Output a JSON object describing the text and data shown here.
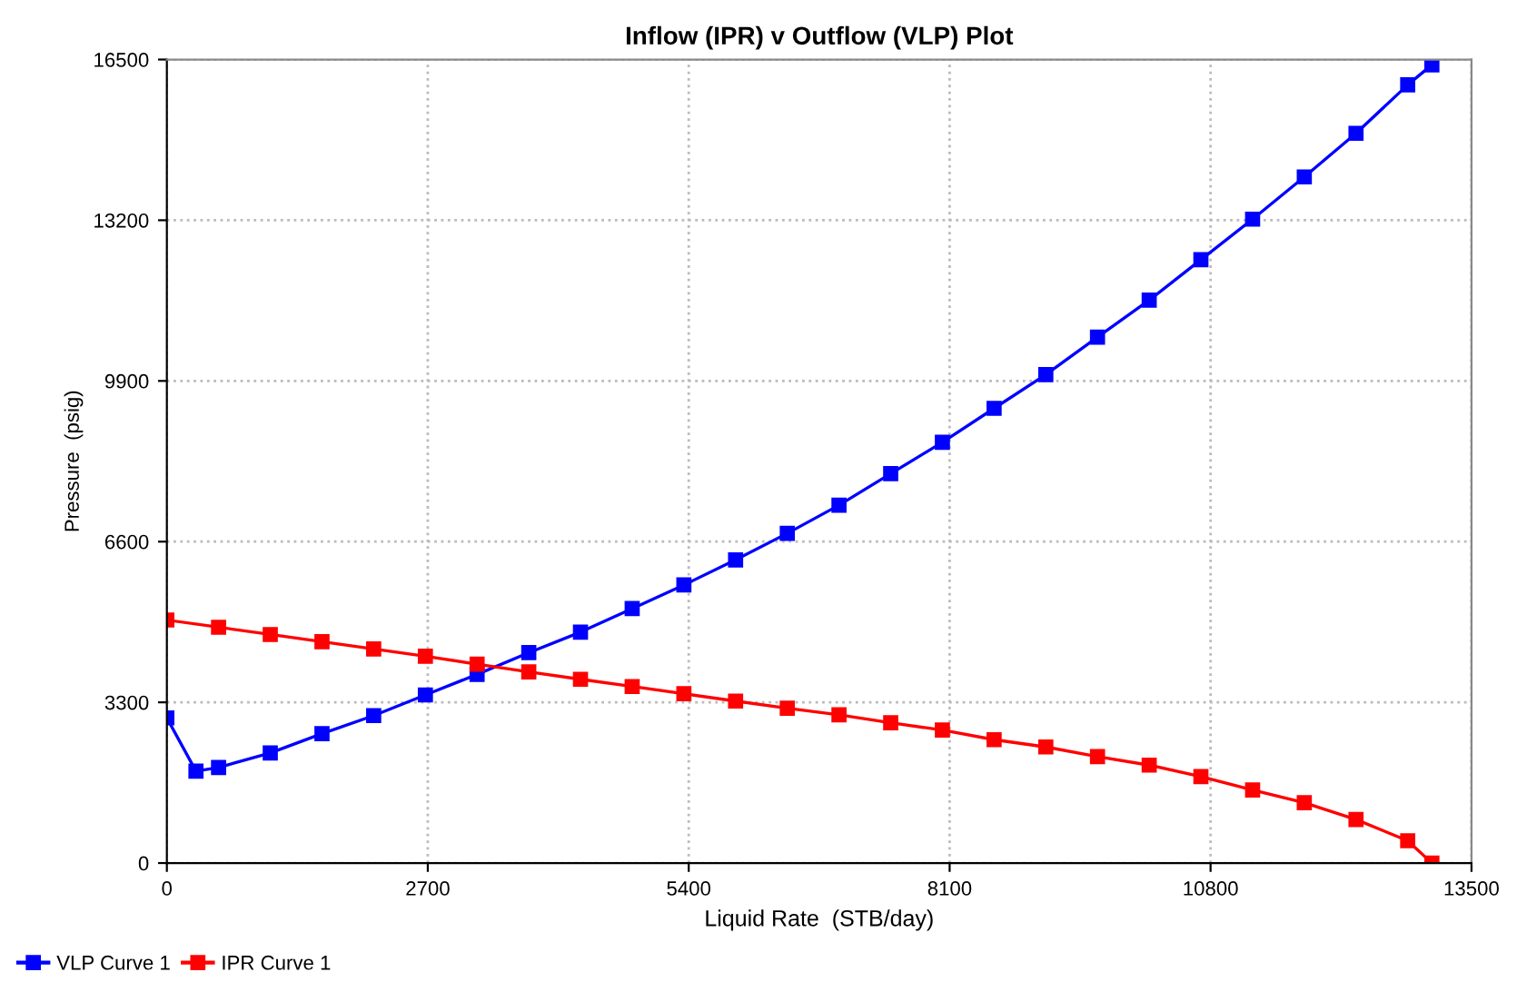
{
  "chart_data": {
    "type": "line",
    "title": "Inflow (IPR) v Outflow (VLP) Plot",
    "xlabel": "Liquid Rate  (STB/day)",
    "ylabel": "Pressure  (psig)",
    "xlim": [
      0,
      13500
    ],
    "xticks": [
      0,
      2700,
      5400,
      8100,
      10800,
      13500
    ],
    "ylim": [
      0,
      16500
    ],
    "yticks": [
      0,
      3300,
      6600,
      9900,
      13200,
      16500
    ],
    "grid": true,
    "legend": "bottom left",
    "marker": "square",
    "line_style": "solid",
    "series": [
      {
        "name": "VLP Curve 1",
        "color": "#0000ff",
        "x": [
          0,
          301,
          535,
          1070,
          1605,
          2140,
          2675,
          3210,
          3745,
          4280,
          4815,
          5350,
          5885,
          6420,
          6955,
          7490,
          8025,
          8560,
          9095,
          9630,
          10165,
          10700,
          11235,
          11770,
          12305,
          12840,
          13090
        ],
        "values": [
          2980,
          1888,
          1963,
          2261,
          2656,
          3028,
          3452,
          3874,
          4320,
          4742,
          5225,
          5710,
          6225,
          6770,
          7348,
          7996,
          8640,
          9337,
          10030,
          10800,
          11560,
          12390,
          13222,
          14090,
          14985,
          15980,
          16390
        ]
      },
      {
        "name": "IPR Curve 1",
        "color": "#ff0000",
        "x": [
          0,
          535,
          1070,
          1605,
          2140,
          2675,
          3210,
          3745,
          4280,
          4815,
          5350,
          5885,
          6420,
          6955,
          7490,
          8025,
          8560,
          9095,
          9630,
          10165,
          10700,
          11235,
          11770,
          12305,
          12840,
          13090
        ],
        "values": [
          4990,
          4842,
          4693,
          4544,
          4395,
          4246,
          4084,
          3924,
          3774,
          3625,
          3477,
          3326,
          3178,
          3043,
          2879,
          2730,
          2533,
          2384,
          2186,
          2011,
          1776,
          1501,
          1240,
          894,
          458,
          0
        ]
      }
    ]
  }
}
